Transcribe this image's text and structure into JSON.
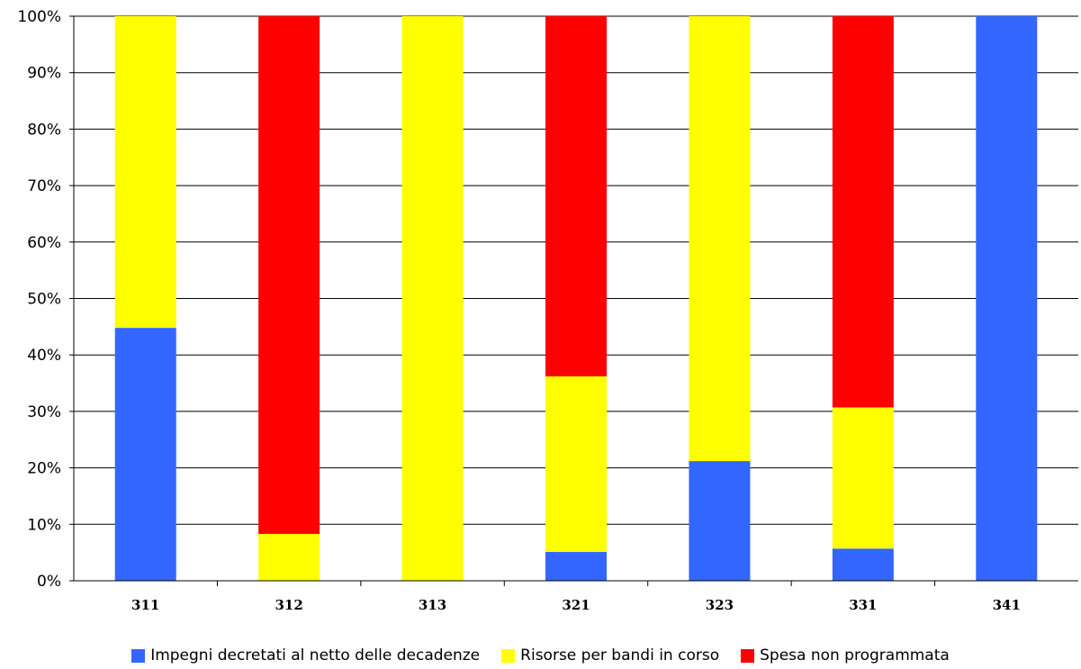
{
  "chart_data": {
    "type": "bar",
    "stacked": true,
    "percent": true,
    "categories": [
      "311",
      "312",
      "313",
      "321",
      "323",
      "331",
      "341"
    ],
    "series": [
      {
        "name": "Impegni decretati al netto delle decadenze",
        "color": "#3366FF",
        "values": [
          44.8,
          0,
          0,
          5.1,
          21.2,
          5.7,
          100
        ]
      },
      {
        "name": "Risorse per bandi in corso",
        "color": "#FFFF00",
        "values": [
          55.2,
          8.3,
          100,
          31.1,
          78.8,
          25.0,
          0
        ]
      },
      {
        "name": "Spesa non programmata",
        "color": "#FF0000",
        "values": [
          0,
          91.7,
          0,
          63.8,
          0,
          69.3,
          0
        ]
      }
    ],
    "yticks": [
      "0%",
      "10%",
      "20%",
      "30%",
      "40%",
      "50%",
      "60%",
      "70%",
      "80%",
      "90%",
      "100%"
    ],
    "ylim": [
      0,
      100
    ],
    "grid": true,
    "legend": "bottom"
  }
}
